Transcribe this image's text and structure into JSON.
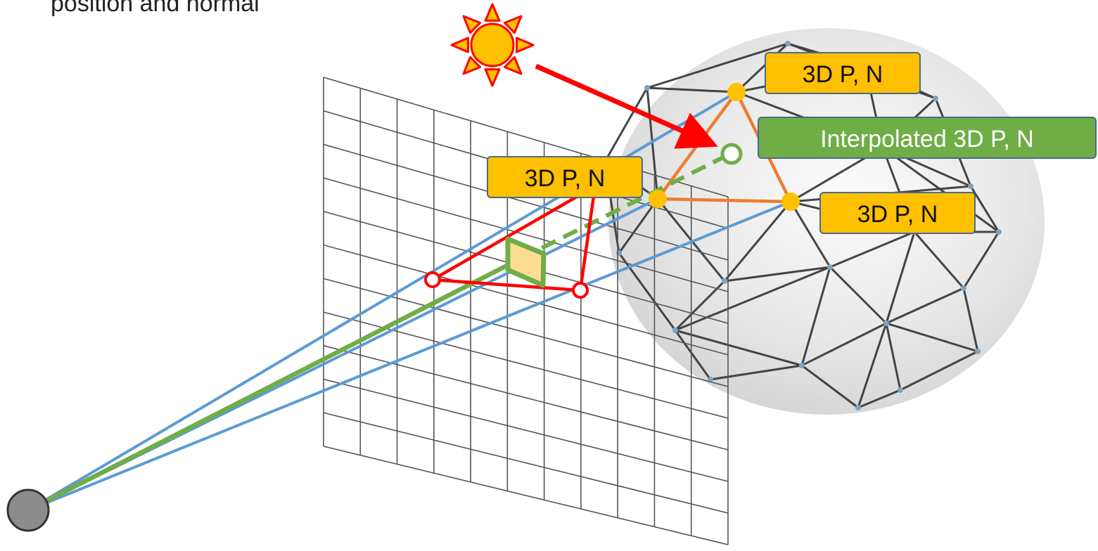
{
  "header": {
    "text": "position and normal"
  },
  "labels": {
    "vertex_top": "3D P, N",
    "vertex_left": "3D P, N",
    "vertex_right": "3D P, N",
    "interpolated": "Interpolated 3D P, N"
  },
  "icons": {
    "light": "sun-icon",
    "camera": "camera-eye-icon"
  },
  "colors": {
    "ray": "#5b9bd5",
    "green": "#70ad47",
    "orange": "#ed7d31",
    "red": "#ff0000",
    "gold": "#ffc000",
    "grid": "#555555",
    "mesh": "#444444"
  }
}
